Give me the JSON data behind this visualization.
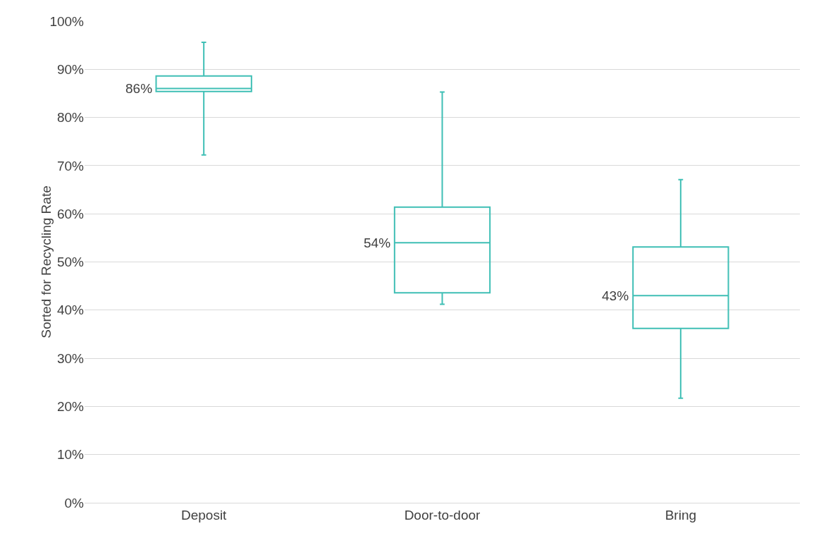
{
  "chart_data": {
    "type": "box",
    "ylabel": "Sorted for Recycling Rate",
    "categories": [
      "Deposit",
      "Door-to-door",
      "Bring"
    ],
    "boxes": [
      {
        "low": 72.2,
        "q1": 85.4,
        "median": 86,
        "q3": 88.6,
        "high": 95.6
      },
      {
        "low": 41.2,
        "q1": 43.6,
        "median": 54,
        "q3": 61.4,
        "high": 85.3
      },
      {
        "low": 21.7,
        "q1": 36.2,
        "median": 43,
        "q3": 53.1,
        "high": 67.1
      }
    ],
    "value_labels": [
      "86%",
      "54%",
      "43%"
    ],
    "color": "#3fbfb5",
    "ylim": [
      0,
      100
    ],
    "yticks": [
      {
        "value": 0,
        "label": "0%"
      },
      {
        "value": 10,
        "label": "10%"
      },
      {
        "value": 20,
        "label": "20%"
      },
      {
        "value": 30,
        "label": "30%"
      },
      {
        "value": 40,
        "label": "40%"
      },
      {
        "value": 50,
        "label": "50%"
      },
      {
        "value": 60,
        "label": "60%"
      },
      {
        "value": 70,
        "label": "70%"
      },
      {
        "value": 80,
        "label": "80%"
      },
      {
        "value": 90,
        "label": "90%"
      },
      {
        "value": 100,
        "label": "100%"
      }
    ],
    "grid": "y"
  }
}
